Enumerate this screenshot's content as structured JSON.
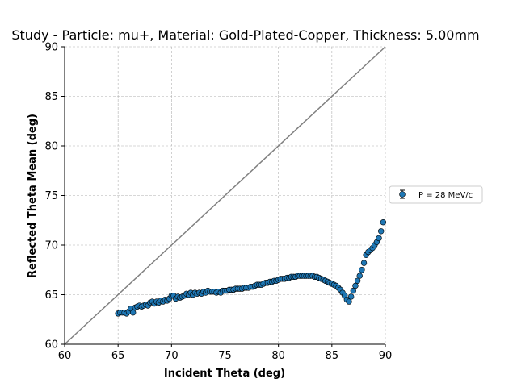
{
  "chart_data": {
    "type": "scatter",
    "title": "Study - Particle: mu+, Material: Gold-Plated-Copper, Thickness: 5.00mm",
    "xlabel": "Incident Theta (deg)",
    "ylabel": "Reflected Theta Mean (deg)",
    "xlim": [
      60,
      90
    ],
    "ylim": [
      60,
      90
    ],
    "xticks": [
      60,
      65,
      70,
      75,
      80,
      85,
      90
    ],
    "yticks": [
      60,
      65,
      70,
      75,
      80,
      85,
      90
    ],
    "grid": true,
    "grid_style": "dashed",
    "legend_position": "right, outside plot",
    "reference_line": {
      "from": [
        60,
        60
      ],
      "to": [
        90,
        90
      ],
      "color": "#808080"
    },
    "series": [
      {
        "name": "P = 28 MeV/c",
        "color": "#1f77b4",
        "marker": "circle with error bars",
        "x": [
          65.0,
          65.2,
          65.4,
          65.6,
          65.8,
          66.0,
          66.2,
          66.4,
          66.6,
          66.8,
          67.0,
          67.2,
          67.4,
          67.6,
          67.8,
          68.0,
          68.2,
          68.4,
          68.6,
          68.8,
          69.0,
          69.2,
          69.4,
          69.6,
          69.8,
          70.0,
          70.2,
          70.4,
          70.6,
          70.8,
          71.0,
          71.2,
          71.4,
          71.6,
          71.8,
          72.0,
          72.2,
          72.4,
          72.6,
          72.8,
          73.0,
          73.2,
          73.4,
          73.6,
          73.8,
          74.0,
          74.2,
          74.4,
          74.6,
          74.8,
          75.0,
          75.2,
          75.4,
          75.6,
          75.8,
          76.0,
          76.2,
          76.4,
          76.6,
          76.8,
          77.0,
          77.2,
          77.4,
          77.6,
          77.8,
          78.0,
          78.2,
          78.4,
          78.6,
          78.8,
          79.0,
          79.2,
          79.4,
          79.6,
          79.8,
          80.0,
          80.2,
          80.4,
          80.6,
          80.8,
          81.0,
          81.2,
          81.4,
          81.6,
          81.8,
          82.0,
          82.2,
          82.4,
          82.6,
          82.8,
          83.0,
          83.2,
          83.4,
          83.6,
          83.8,
          84.0,
          84.2,
          84.4,
          84.6,
          84.8,
          85.0,
          85.2,
          85.4,
          85.6,
          85.8,
          86.0,
          86.2,
          86.4,
          86.6,
          86.8,
          87.0,
          87.2,
          87.4,
          87.6,
          87.8,
          88.0,
          88.2,
          88.4,
          88.6,
          88.8,
          89.0,
          89.2,
          89.4,
          89.6,
          89.8
        ],
        "y": [
          63.1,
          63.2,
          63.2,
          63.2,
          63.1,
          63.3,
          63.6,
          63.2,
          63.7,
          63.8,
          63.9,
          63.8,
          63.9,
          64.0,
          63.9,
          64.2,
          64.3,
          64.1,
          64.3,
          64.2,
          64.4,
          64.3,
          64.5,
          64.4,
          64.6,
          64.9,
          64.9,
          64.6,
          64.8,
          64.7,
          64.8,
          64.9,
          65.1,
          65.0,
          65.2,
          65.0,
          65.2,
          65.1,
          65.2,
          65.1,
          65.3,
          65.2,
          65.4,
          65.3,
          65.3,
          65.3,
          65.2,
          65.3,
          65.2,
          65.4,
          65.4,
          65.4,
          65.5,
          65.5,
          65.5,
          65.6,
          65.6,
          65.6,
          65.6,
          65.7,
          65.7,
          65.7,
          65.8,
          65.8,
          65.9,
          66.0,
          66.0,
          66.0,
          66.1,
          66.2,
          66.2,
          66.3,
          66.3,
          66.4,
          66.4,
          66.5,
          66.6,
          66.6,
          66.6,
          66.7,
          66.7,
          66.8,
          66.8,
          66.8,
          66.9,
          66.9,
          66.9,
          66.9,
          66.9,
          66.9,
          66.9,
          66.9,
          66.8,
          66.8,
          66.7,
          66.6,
          66.5,
          66.4,
          66.3,
          66.2,
          66.1,
          66.0,
          65.9,
          65.7,
          65.5,
          65.2,
          64.9,
          64.5,
          64.3,
          64.8,
          65.4,
          65.9,
          66.4,
          66.9,
          67.5,
          68.2,
          69.0,
          69.3,
          69.5,
          69.7,
          70.0,
          70.3,
          70.7,
          71.4,
          72.3
        ]
      }
    ]
  }
}
